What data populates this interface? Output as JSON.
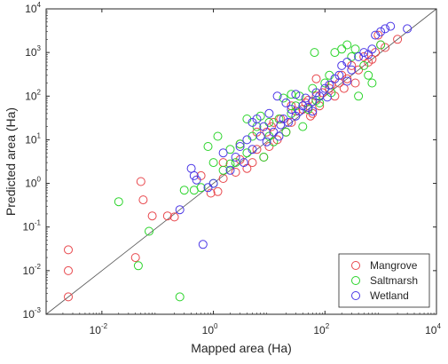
{
  "chart_data": {
    "type": "scatter",
    "title": "",
    "xlabel": "Mapped area (Ha)",
    "ylabel": "Predicted area (Ha)",
    "x_scale": "log",
    "y_scale": "log",
    "xlim": [
      0.001,
      10000
    ],
    "ylim": [
      0.001,
      10000
    ],
    "x_ticks": [
      {
        "base": "10",
        "exp": "-2",
        "value": 0.01
      },
      {
        "base": "10",
        "exp": "0",
        "value": 1
      },
      {
        "base": "10",
        "exp": "2",
        "value": 100
      },
      {
        "base": "10",
        "exp": "4",
        "value": 10000
      }
    ],
    "y_ticks": [
      {
        "base": "10",
        "exp": "-3",
        "value": 0.001
      },
      {
        "base": "10",
        "exp": "-2",
        "value": 0.01
      },
      {
        "base": "10",
        "exp": "-1",
        "value": 0.1
      },
      {
        "base": "10",
        "exp": "0",
        "value": 1
      },
      {
        "base": "10",
        "exp": "1",
        "value": 10
      },
      {
        "base": "10",
        "exp": "2",
        "value": 100
      },
      {
        "base": "10",
        "exp": "3",
        "value": 1000
      },
      {
        "base": "10",
        "exp": "4",
        "value": 10000
      }
    ],
    "grid": false,
    "reference_line": "y = x",
    "legend_position": "bottom-right",
    "series": [
      {
        "name": "Mangrove",
        "color": "#e8474c",
        "points": [
          [
            0.0025,
            0.03
          ],
          [
            0.0025,
            0.01
          ],
          [
            0.0025,
            0.0025
          ],
          [
            0.04,
            0.02
          ],
          [
            0.05,
            1.1
          ],
          [
            0.055,
            0.42
          ],
          [
            0.08,
            0.18
          ],
          [
            0.15,
            0.18
          ],
          [
            0.2,
            0.17
          ],
          [
            0.6,
            1.5
          ],
          [
            0.9,
            0.6
          ],
          [
            1.2,
            0.65
          ],
          [
            1.5,
            1.3
          ],
          [
            2.5,
            1.8
          ],
          [
            3,
            3.5
          ],
          [
            4,
            2.2
          ],
          [
            5,
            3
          ],
          [
            6,
            6
          ],
          [
            8,
            4
          ],
          [
            9,
            15
          ],
          [
            10,
            7
          ],
          [
            11,
            20
          ],
          [
            14,
            10
          ],
          [
            16,
            30
          ],
          [
            20,
            15
          ],
          [
            25,
            25
          ],
          [
            30,
            45
          ],
          [
            40,
            50
          ],
          [
            50,
            80
          ],
          [
            55,
            35
          ],
          [
            60,
            40
          ],
          [
            70,
            100
          ],
          [
            80,
            60
          ],
          [
            90,
            120
          ],
          [
            120,
            150
          ],
          [
            150,
            100
          ],
          [
            180,
            200
          ],
          [
            200,
            300
          ],
          [
            250,
            250
          ],
          [
            300,
            500
          ],
          [
            400,
            400
          ],
          [
            500,
            800
          ],
          [
            600,
            600
          ],
          [
            800,
            1000
          ],
          [
            1000,
            1500
          ],
          [
            1200,
            1300
          ],
          [
            2000,
            2000
          ],
          [
            1.5,
            3
          ],
          [
            3,
            8
          ],
          [
            6,
            15
          ],
          [
            12,
            25
          ],
          [
            25,
            60
          ],
          [
            45,
            70
          ],
          [
            70,
            250
          ],
          [
            130,
            180
          ],
          [
            220,
            150
          ],
          [
            350,
            200
          ],
          [
            700,
            700
          ],
          [
            900,
            2500
          ]
        ]
      },
      {
        "name": "Saltmarsh",
        "color": "#2ad42a",
        "points": [
          [
            0.02,
            0.38
          ],
          [
            0.045,
            0.013
          ],
          [
            0.07,
            0.08
          ],
          [
            0.25,
            0.0025
          ],
          [
            0.3,
            0.7
          ],
          [
            0.45,
            0.7
          ],
          [
            0.6,
            0.8
          ],
          [
            0.8,
            7
          ],
          [
            1,
            3
          ],
          [
            1.2,
            12
          ],
          [
            1.5,
            2
          ],
          [
            2,
            2.8
          ],
          [
            2.5,
            3
          ],
          [
            3,
            8
          ],
          [
            4,
            5
          ],
          [
            5,
            12
          ],
          [
            6,
            20
          ],
          [
            7,
            35
          ],
          [
            8,
            4
          ],
          [
            10,
            12
          ],
          [
            12,
            9
          ],
          [
            15,
            30
          ],
          [
            18,
            90
          ],
          [
            20,
            15
          ],
          [
            25,
            40
          ],
          [
            30,
            60
          ],
          [
            35,
            100
          ],
          [
            40,
            20
          ],
          [
            50,
            50
          ],
          [
            60,
            150
          ],
          [
            65,
            1000
          ],
          [
            70,
            80
          ],
          [
            80,
            70
          ],
          [
            100,
            200
          ],
          [
            120,
            300
          ],
          [
            150,
            1000
          ],
          [
            200,
            1200
          ],
          [
            250,
            1500
          ],
          [
            300,
            800
          ],
          [
            350,
            1200
          ],
          [
            400,
            100
          ],
          [
            500,
            500
          ],
          [
            600,
            300
          ],
          [
            700,
            200
          ],
          [
            1000,
            1500
          ],
          [
            2,
            6
          ],
          [
            10,
            25
          ],
          [
            25,
            110
          ],
          [
            130,
            120
          ],
          [
            4,
            30
          ],
          [
            1,
            1
          ]
        ]
      },
      {
        "name": "Wetland",
        "color": "#4a36e6",
        "points": [
          [
            0.25,
            0.25
          ],
          [
            0.4,
            2.2
          ],
          [
            0.45,
            1.5
          ],
          [
            0.5,
            1.2
          ],
          [
            0.65,
            0.04
          ],
          [
            0.8,
            0.8
          ],
          [
            1,
            1
          ],
          [
            1.5,
            5
          ],
          [
            2,
            2
          ],
          [
            2.5,
            4
          ],
          [
            3,
            7
          ],
          [
            3.5,
            3
          ],
          [
            4,
            10
          ],
          [
            5,
            6
          ],
          [
            6,
            30
          ],
          [
            7,
            12
          ],
          [
            8,
            20
          ],
          [
            9,
            9
          ],
          [
            10,
            40
          ],
          [
            12,
            15
          ],
          [
            14,
            100
          ],
          [
            16,
            22
          ],
          [
            18,
            30
          ],
          [
            20,
            70
          ],
          [
            22,
            25
          ],
          [
            25,
            50
          ],
          [
            30,
            35
          ],
          [
            35,
            45
          ],
          [
            40,
            60
          ],
          [
            45,
            90
          ],
          [
            50,
            55
          ],
          [
            60,
            75
          ],
          [
            70,
            120
          ],
          [
            80,
            100
          ],
          [
            100,
            150
          ],
          [
            120,
            180
          ],
          [
            150,
            250
          ],
          [
            180,
            300
          ],
          [
            200,
            500
          ],
          [
            250,
            600
          ],
          [
            300,
            400
          ],
          [
            400,
            800
          ],
          [
            500,
            1000
          ],
          [
            600,
            900
          ],
          [
            700,
            1200
          ],
          [
            800,
            2500
          ],
          [
            1000,
            3000
          ],
          [
            1200,
            3500
          ],
          [
            1500,
            4000
          ],
          [
            3000,
            3500
          ],
          [
            5,
            25
          ],
          [
            15,
            12
          ],
          [
            30,
            110
          ],
          [
            60,
            45
          ],
          [
            110,
            95
          ],
          [
            250,
            220
          ]
        ]
      }
    ]
  },
  "legend": {
    "items": [
      {
        "label": "Mangrove",
        "color": "#e8474c"
      },
      {
        "label": "Saltmarsh",
        "color": "#2ad42a"
      },
      {
        "label": "Wetland",
        "color": "#4a36e6"
      }
    ]
  }
}
